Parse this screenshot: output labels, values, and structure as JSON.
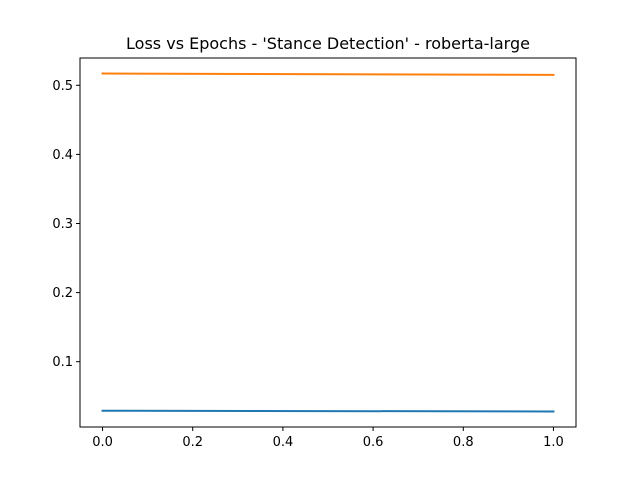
{
  "chart_data": {
    "type": "line",
    "title": "Loss vs Epochs - 'Stance Detection' - roberta-large",
    "xlabel": "",
    "ylabel": "",
    "xlim": [
      -0.05,
      1.05
    ],
    "ylim": [
      0.0055,
      0.5395
    ],
    "xticks": [
      "0.0",
      "0.2",
      "0.4",
      "0.6",
      "0.8",
      "1.0"
    ],
    "yticks": [
      "0.1",
      "0.2",
      "0.3",
      "0.4",
      "0.5"
    ],
    "grid": false,
    "series": [
      {
        "color": "#1f77b4",
        "x": [
          0.0,
          1.0
        ],
        "y": [
          0.029,
          0.028
        ]
      },
      {
        "color": "#ff7f0e",
        "x": [
          0.0,
          1.0
        ],
        "y": [
          0.517,
          0.515
        ]
      }
    ]
  }
}
